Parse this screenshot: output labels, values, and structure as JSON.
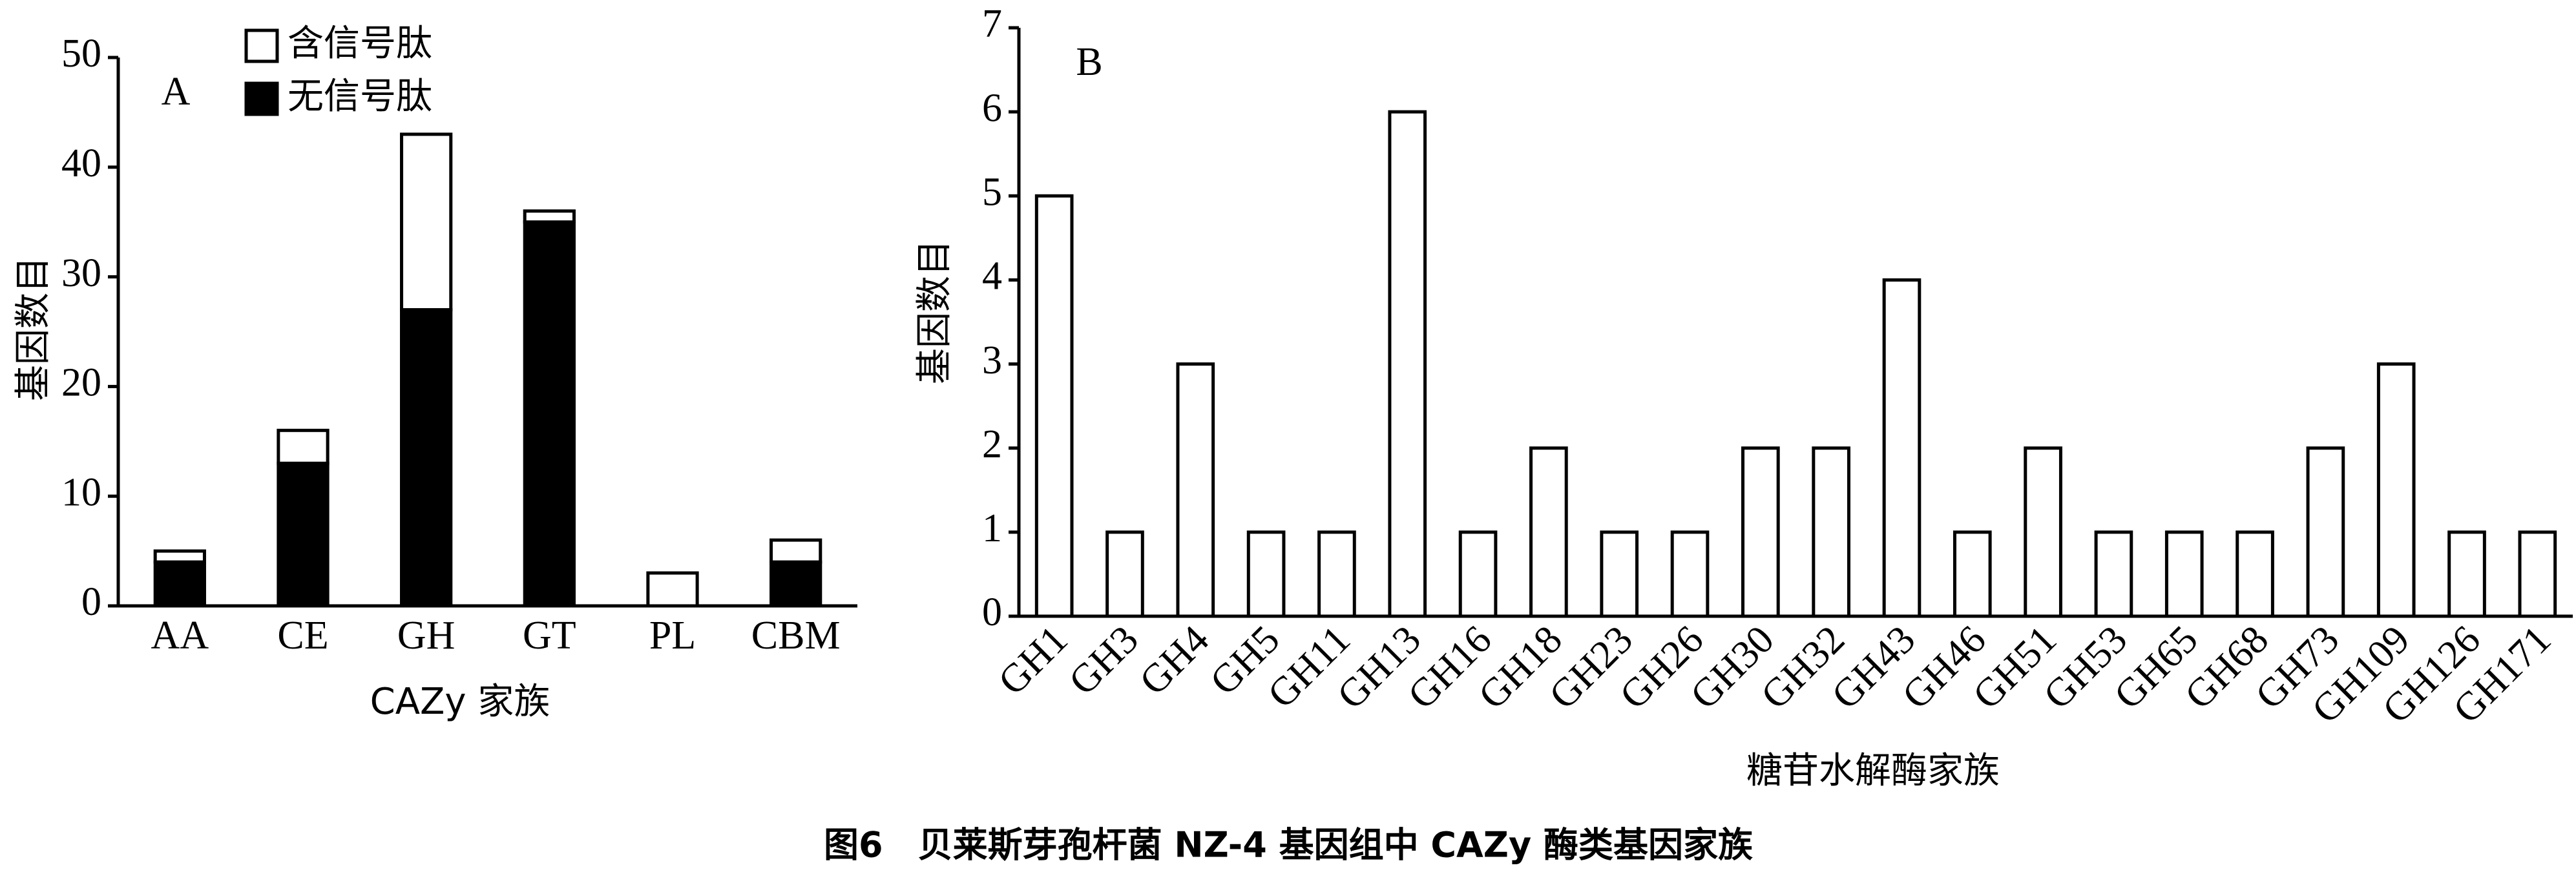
{
  "caption": "图6　贝莱斯芽孢杆菌 NZ-4 基因组中 CAZy 酶类基因家族",
  "chart_data": [
    {
      "type": "bar",
      "stacked": true,
      "annotation": "A",
      "y_label": "基因数目",
      "x_label": "CAZy 家族",
      "categories": [
        "AA",
        "CE",
        "GH",
        "GT",
        "PL",
        "CBM"
      ],
      "series": [
        {
          "name": "无信号肽",
          "color": "#000000",
          "values": [
            4,
            13,
            27,
            35,
            0,
            4
          ]
        },
        {
          "name": "含信号肽",
          "color": "#ffffff",
          "values": [
            1,
            3,
            16,
            1,
            3,
            2
          ]
        }
      ],
      "ylim": [
        0,
        50
      ],
      "yticks": [
        0,
        10,
        20,
        30,
        40,
        50
      ]
    },
    {
      "type": "bar",
      "annotation": "B",
      "y_label": "基因数目",
      "x_label": "糖苷水解酶家族",
      "categories": [
        "GH1",
        "GH3",
        "GH4",
        "GH5",
        "GH11",
        "GH13",
        "GH16",
        "GH18",
        "GH23",
        "GH26",
        "GH30",
        "GH32",
        "GH43",
        "GH46",
        "GH51",
        "GH53",
        "GH65",
        "GH68",
        "GH73",
        "GH109",
        "GH126",
        "GH171"
      ],
      "values": [
        5,
        1,
        3,
        1,
        1,
        6,
        1,
        2,
        1,
        1,
        2,
        2,
        4,
        1,
        2,
        1,
        1,
        1,
        2,
        3,
        1,
        1
      ],
      "color": "#ffffff",
      "ylim": [
        0,
        7
      ],
      "yticks": [
        0,
        1,
        2,
        3,
        4,
        5,
        6,
        7
      ]
    }
  ]
}
